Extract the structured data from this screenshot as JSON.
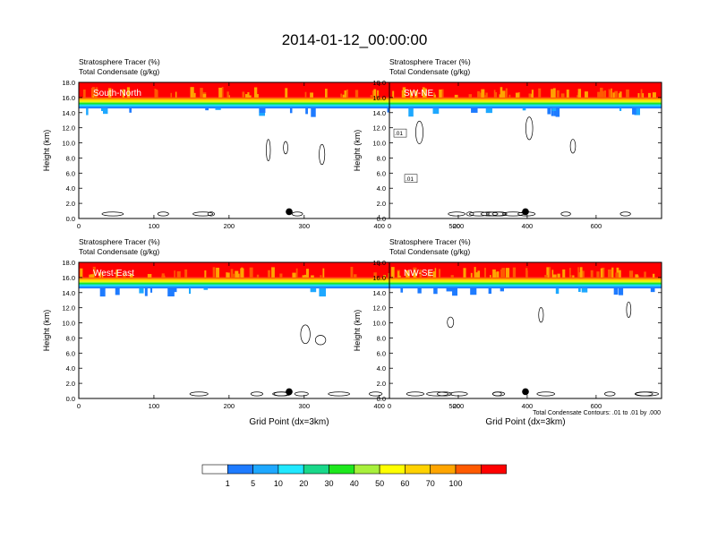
{
  "title": "2014-01-12_00:00:00",
  "colors": {
    "levels": [
      "#ffffff",
      "#1e7bff",
      "#1ea8ff",
      "#20e8ff",
      "#19d88a",
      "#1ee81e",
      "#a8f03c",
      "#ffff00",
      "#ffd200",
      "#ffa500",
      "#ff5a00",
      "#ff0000"
    ],
    "contour": "#000000",
    "marker": "#000000"
  },
  "legend": {
    "type": "colorbar",
    "labels": [
      "1",
      "5",
      "10",
      "20",
      "30",
      "40",
      "50",
      "60",
      "70",
      "100"
    ]
  },
  "footnote": "Total Condensate Contours: .01 to .01 by .000",
  "chart_data": [
    {
      "type": "heatmap",
      "panel_label": "South-North",
      "subtitle_1": "Stratosphere Tracer   (%)",
      "subtitle_2": "Total Condensate   (g/kg)",
      "ylabel": "Height (km)",
      "xlabel": "",
      "xlim": [
        0,
        560
      ],
      "ylim": [
        0,
        18
      ],
      "xticks": [
        "0",
        "100",
        "200",
        "300",
        "400",
        "500"
      ],
      "xtick_values": [
        0,
        100,
        200,
        300,
        400,
        500
      ],
      "yticks": [
        "0.0",
        "2.0",
        "4.0",
        "6.0",
        "8.0",
        "10.0",
        "12.0",
        "14.0",
        "16.0",
        "18.0"
      ],
      "tracer_top_km": 16.0,
      "tracer_base_km": 14.6,
      "marker_x": 280,
      "marker_y_km": 0.9,
      "contour_labels": []
    },
    {
      "type": "heatmap",
      "panel_label": "SW-NE",
      "subtitle_1": "Stratosphere Tracer   (%)",
      "subtitle_2": "Total Condensate   (g/kg)",
      "ylabel": "Height (km)",
      "xlabel": "",
      "xlim": [
        0,
        790
      ],
      "ylim": [
        0,
        18
      ],
      "xticks": [
        "0",
        "200",
        "400",
        "600"
      ],
      "xtick_values": [
        0,
        200,
        400,
        600
      ],
      "yticks": [
        "0.0",
        "2.0",
        "4.0",
        "6.0",
        "8.0",
        "10.0",
        "12.0",
        "14.0",
        "16.0",
        "18.0"
      ],
      "tracer_top_km": 16.0,
      "tracer_base_km": 14.6,
      "marker_x": 395,
      "marker_y_km": 0.9,
      "contour_labels": [
        ".01",
        ".01"
      ]
    },
    {
      "type": "heatmap",
      "panel_label": "West-East",
      "subtitle_1": "Stratosphere Tracer   (%)",
      "subtitle_2": "Total Condensate   (g/kg)",
      "ylabel": "Height (km)",
      "xlabel": "Grid Point (dx=3km)",
      "xlim": [
        0,
        560
      ],
      "ylim": [
        0,
        18
      ],
      "xticks": [
        "0",
        "100",
        "200",
        "300",
        "400",
        "500"
      ],
      "xtick_values": [
        0,
        100,
        200,
        300,
        400,
        500
      ],
      "yticks": [
        "0.0",
        "2.0",
        "4.0",
        "6.0",
        "8.0",
        "10.0",
        "12.0",
        "14.0",
        "16.0",
        "18.0"
      ],
      "tracer_top_km": 16.0,
      "tracer_base_km": 14.6,
      "marker_x": 280,
      "marker_y_km": 0.9,
      "contour_labels": []
    },
    {
      "type": "heatmap",
      "panel_label": "NW-SE",
      "subtitle_1": "Stratosphere Tracer   (%)",
      "subtitle_2": "Total Condensate   (g/kg)",
      "ylabel": "Height (km)",
      "xlabel": "Grid Point (dx=3km)",
      "xlim": [
        0,
        790
      ],
      "ylim": [
        0,
        18
      ],
      "xticks": [
        "0",
        "200",
        "400",
        "600"
      ],
      "xtick_values": [
        0,
        200,
        400,
        600
      ],
      "yticks": [
        "0.0",
        "2.0",
        "4.0",
        "6.0",
        "8.0",
        "10.0",
        "12.0",
        "14.0",
        "16.0",
        "18.0"
      ],
      "tracer_top_km": 16.0,
      "tracer_base_km": 14.6,
      "marker_x": 395,
      "marker_y_km": 0.9,
      "contour_labels": []
    }
  ]
}
